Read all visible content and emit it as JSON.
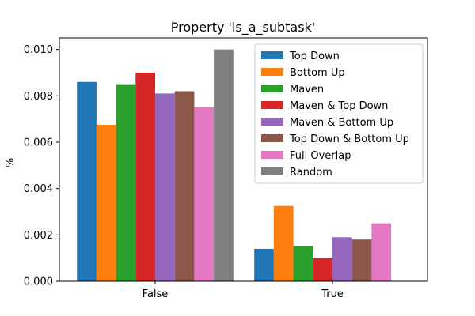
{
  "chart_data": {
    "type": "bar",
    "title": "Property 'is_a_subtask'",
    "xlabel": "",
    "ylabel": "%",
    "ylim": [
      0,
      0.0105
    ],
    "yticks": [
      "0.000",
      "0.002",
      "0.004",
      "0.006",
      "0.008",
      "0.010"
    ],
    "ytick_values": [
      0,
      0.002,
      0.004,
      0.006,
      0.008,
      0.01
    ],
    "categories": [
      "False",
      "True"
    ],
    "legend_position": "top-right",
    "grid": false,
    "series": [
      {
        "name": "Top Down",
        "color": "#1f77b4",
        "values": [
          0.0086,
          0.0014
        ]
      },
      {
        "name": "Bottom Up",
        "color": "#ff7f0e",
        "values": [
          0.00675,
          0.00325
        ]
      },
      {
        "name": "Maven",
        "color": "#2ca02c",
        "values": [
          0.0085,
          0.0015
        ]
      },
      {
        "name": "Maven & Top Down",
        "color": "#d62728",
        "values": [
          0.009,
          0.001
        ]
      },
      {
        "name": "Maven & Bottom Up",
        "color": "#9467bd",
        "values": [
          0.0081,
          0.0019
        ]
      },
      {
        "name": "Top Down & Bottom Up",
        "color": "#8c564b",
        "values": [
          0.0082,
          0.0018
        ]
      },
      {
        "name": "Full Overlap",
        "color": "#e377c2",
        "values": [
          0.0075,
          0.0025
        ]
      },
      {
        "name": "Random",
        "color": "#7f7f7f",
        "values": [
          0.01,
          0.0
        ]
      }
    ]
  }
}
